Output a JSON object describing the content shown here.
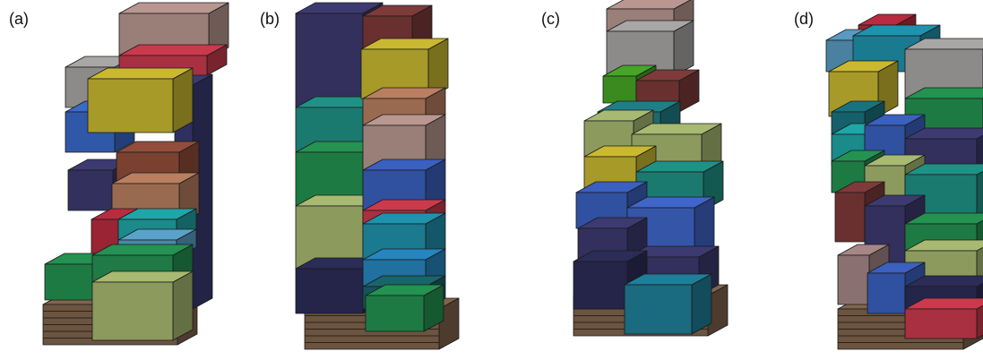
{
  "panels": {
    "labels": [
      "(a)",
      "(b)",
      "(c)",
      "(d)"
    ]
  }
}
